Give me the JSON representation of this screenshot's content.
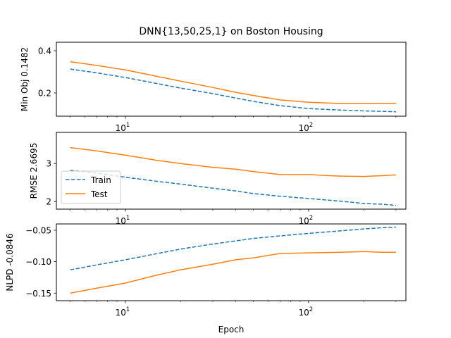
{
  "figure": {
    "title": "DNN{13,50,25,1} on Boston Housing",
    "xlabel": "Epoch"
  },
  "colors": {
    "train": "#1f77b4",
    "test": "#ff7f0e"
  },
  "legend": {
    "placement": "center-left of middle panel",
    "entries": [
      {
        "name": "Train",
        "style": "dashed",
        "color": "#1f77b4"
      },
      {
        "name": "Test",
        "style": "solid",
        "color": "#ff7f0e"
      }
    ]
  },
  "chart_data": [
    {
      "type": "line",
      "ylabel": "Min Obj 0.1482",
      "xscale": "log",
      "xlim": [
        4.2,
        340
      ],
      "ylim": [
        0.09,
        0.44
      ],
      "xticks": [
        {
          "v": 10,
          "base": "10",
          "exp": "1"
        },
        {
          "v": 100,
          "base": "10",
          "exp": "2"
        }
      ],
      "yticks": [
        {
          "v": 0.2,
          "label": "0.2"
        },
        {
          "v": 0.4,
          "label": "0.4"
        }
      ],
      "series": [
        {
          "name": "Train",
          "style": "dashed",
          "color": "#1f77b4",
          "points": [
            [
              5,
              0.313
            ],
            [
              7,
              0.295
            ],
            [
              10,
              0.273
            ],
            [
              15,
              0.244
            ],
            [
              20,
              0.223
            ],
            [
              30,
              0.197
            ],
            [
              40,
              0.176
            ],
            [
              50,
              0.16
            ],
            [
              70,
              0.14
            ],
            [
              100,
              0.126
            ],
            [
              150,
              0.119
            ],
            [
              200,
              0.115
            ],
            [
              250,
              0.113
            ],
            [
              300,
              0.111
            ]
          ]
        },
        {
          "name": "Test",
          "style": "solid",
          "color": "#ff7f0e",
          "points": [
            [
              5,
              0.348
            ],
            [
              7,
              0.33
            ],
            [
              10,
              0.309
            ],
            [
              15,
              0.278
            ],
            [
              20,
              0.256
            ],
            [
              30,
              0.226
            ],
            [
              40,
              0.203
            ],
            [
              50,
              0.188
            ],
            [
              70,
              0.167
            ],
            [
              100,
              0.156
            ],
            [
              130,
              0.152
            ],
            [
              150,
              0.15
            ],
            [
              200,
              0.15
            ],
            [
              250,
              0.15
            ],
            [
              300,
              0.151
            ]
          ]
        }
      ]
    },
    {
      "type": "line",
      "ylabel": "RMSE 2.6695",
      "xscale": "log",
      "xlim": [
        4.2,
        340
      ],
      "ylim": [
        1.8,
        3.82
      ],
      "xticks": [
        {
          "v": 10,
          "base": "10",
          "exp": "1"
        },
        {
          "v": 100,
          "base": "10",
          "exp": "2"
        }
      ],
      "yticks": [
        {
          "v": 2,
          "label": "2"
        },
        {
          "v": 3,
          "label": "3"
        }
      ],
      "series": [
        {
          "name": "Train",
          "style": "dashed",
          "color": "#1f77b4",
          "points": [
            [
              5,
              2.82
            ],
            [
              7,
              2.75
            ],
            [
              10,
              2.64
            ],
            [
              15,
              2.53
            ],
            [
              20,
              2.46
            ],
            [
              30,
              2.35
            ],
            [
              40,
              2.28
            ],
            [
              50,
              2.21
            ],
            [
              70,
              2.14
            ],
            [
              100,
              2.08
            ],
            [
              150,
              2.01
            ],
            [
              200,
              1.95
            ],
            [
              250,
              1.93
            ],
            [
              300,
              1.9
            ]
          ]
        },
        {
          "name": "Test",
          "style": "solid",
          "color": "#ff7f0e",
          "points": [
            [
              5,
              3.42
            ],
            [
              7,
              3.33
            ],
            [
              10,
              3.22
            ],
            [
              15,
              3.08
            ],
            [
              20,
              3.0
            ],
            [
              30,
              2.9
            ],
            [
              40,
              2.85
            ],
            [
              50,
              2.79
            ],
            [
              70,
              2.71
            ],
            [
              100,
              2.71
            ],
            [
              130,
              2.68
            ],
            [
              150,
              2.67
            ],
            [
              200,
              2.66
            ],
            [
              250,
              2.68
            ],
            [
              300,
              2.7
            ]
          ]
        }
      ]
    },
    {
      "type": "line",
      "ylabel": "NLPD -0.0846",
      "xscale": "log",
      "xlim": [
        4.2,
        340
      ],
      "ylim": [
        -0.162,
        -0.04
      ],
      "xticks": [
        {
          "v": 10,
          "base": "10",
          "exp": "1"
        },
        {
          "v": 100,
          "base": "10",
          "exp": "2"
        }
      ],
      "yticks": [
        {
          "v": -0.15,
          "label": "−0.15"
        },
        {
          "v": -0.1,
          "label": "−0.10"
        },
        {
          "v": -0.05,
          "label": "−0.05"
        }
      ],
      "series": [
        {
          "name": "Train",
          "style": "dashed",
          "color": "#1f77b4",
          "points": [
            [
              5,
              -0.113
            ],
            [
              7,
              -0.105
            ],
            [
              10,
              -0.097
            ],
            [
              15,
              -0.087
            ],
            [
              20,
              -0.08
            ],
            [
              30,
              -0.072
            ],
            [
              40,
              -0.067
            ],
            [
              50,
              -0.063
            ],
            [
              70,
              -0.059
            ],
            [
              100,
              -0.055
            ],
            [
              150,
              -0.051
            ],
            [
              200,
              -0.048
            ],
            [
              250,
              -0.046
            ],
            [
              300,
              -0.045
            ]
          ]
        },
        {
          "name": "Test",
          "style": "solid",
          "color": "#ff7f0e",
          "points": [
            [
              5,
              -0.15
            ],
            [
              7,
              -0.142
            ],
            [
              10,
              -0.134
            ],
            [
              15,
              -0.121
            ],
            [
              20,
              -0.113
            ],
            [
              30,
              -0.104
            ],
            [
              40,
              -0.097
            ],
            [
              50,
              -0.094
            ],
            [
              60,
              -0.09
            ],
            [
              70,
              -0.087
            ],
            [
              100,
              -0.086
            ],
            [
              150,
              -0.085
            ],
            [
              200,
              -0.084
            ],
            [
              250,
              -0.085
            ],
            [
              300,
              -0.085
            ]
          ]
        }
      ]
    }
  ]
}
